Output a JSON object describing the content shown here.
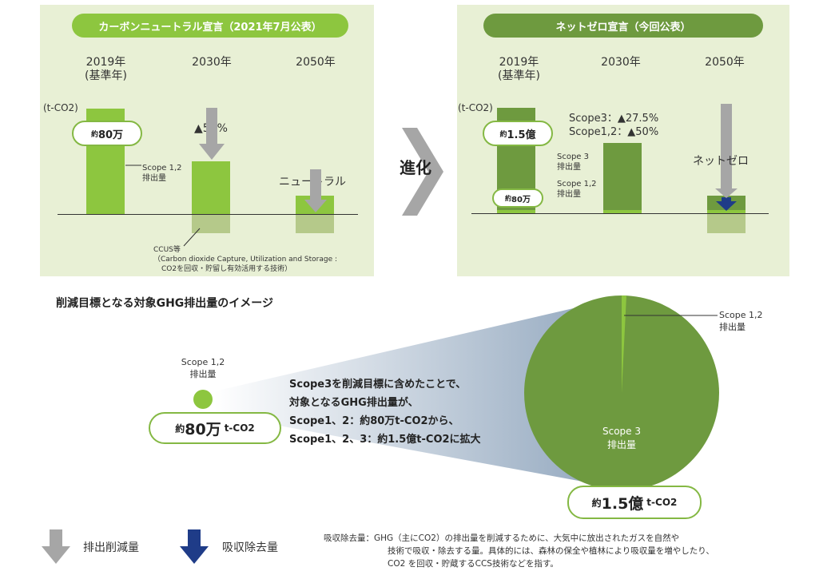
{
  "left_panel": {
    "title": "カーボンニュートラル宣言（2021年7月公表）",
    "year_2019": "2019年",
    "base_year": "(基準年)",
    "year_2030": "2030年",
    "year_2050": "2050年",
    "unit": "(t-CO2)",
    "badge_prefix": "約",
    "badge_value": "80万",
    "scope12_label_line1": "Scope 1,2",
    "scope12_label_line2": "排出量",
    "reduction_2030": "▲50%",
    "neutral": "ニュートラル",
    "ccus_line1": "CCUS等",
    "ccus_line2": "（Carbon dioxide Capture, Utilization and Storage :",
    "ccus_line3": "CO2を回収・貯留し有効活用する技術）"
  },
  "evolution_label": "進化",
  "right_panel": {
    "title": "ネットゼロ宣言（今回公表）",
    "year_2019": "2019年",
    "base_year": "(基準年)",
    "year_2030": "2030年",
    "year_2050": "2050年",
    "unit": "(t-CO2)",
    "badge_top_prefix": "約",
    "badge_top_value": "1.5億",
    "badge_bottom_prefix": "約",
    "badge_bottom_value": "80万",
    "scope3_label_line1": "Scope 3",
    "scope3_label_line2": "排出量",
    "scope12_label_line1": "Scope 1,2",
    "scope12_label_line2": "排出量",
    "reduction_scope3": "Scope3：▲27.5%",
    "reduction_scope12": "Scope1,2：▲50%",
    "netzero": "ネットゼロ"
  },
  "image_section": {
    "heading": "削減目標となる対象GHG排出量のイメージ",
    "small_label_line1": "Scope 1,2",
    "small_label_line2": "排出量",
    "small_badge_prefix": "約",
    "small_badge_value": "80万",
    "small_badge_unit": "t-CO2",
    "text_line1": "Scope3を削減目標に含めたことで、",
    "text_line2": "対象となるGHG排出量が、",
    "text_line3": "Scope1、2：約80万t-CO2から、",
    "text_line4": "Scope1、2、3：約1.5億t-CO2に拡大",
    "pie_scope12_line1": "Scope 1,2",
    "pie_scope12_line2": "排出量",
    "pie_scope3_line1": "Scope 3",
    "pie_scope3_line2": "排出量",
    "big_badge_prefix": "約",
    "big_badge_value": "1.5億",
    "big_badge_unit": "t-CO2"
  },
  "legend": {
    "reduction": "排出削減量",
    "absorption": "吸収除去量"
  },
  "note": {
    "line1": "吸収除去量：GHG（主にCO2）の排出量を削減するために、大気中に放出されたガスを自然や",
    "line2": "技術で吸収・除去する量。具体的には、森林の保全や植林により吸収量を増やしたり、",
    "line3": "CO2 を回収・貯蔵するCCS技術などを指す。"
  },
  "colors": {
    "light_green": "#8dc63f",
    "dark_green": "#6e9a3f",
    "panel_bg": "#e8f0d5",
    "gray_arrow": "#a6a6a6",
    "navy_arrow": "#1f3c88"
  }
}
